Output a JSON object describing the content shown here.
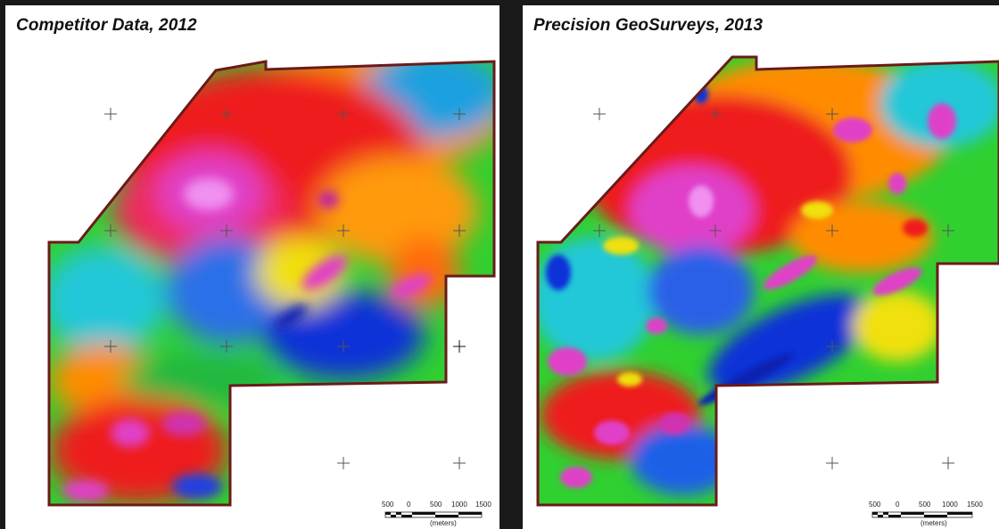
{
  "panels": [
    {
      "title": "Competitor Data, 2012",
      "scale_labels": [
        "500",
        "0",
        "500",
        "1000",
        "1500"
      ],
      "scale_unit": "(meters)"
    },
    {
      "title": "Precision GeoSurveys, 2013",
      "scale_labels": [
        "500",
        "0",
        "500",
        "1000",
        "1500"
      ],
      "scale_unit": "(meters)"
    }
  ],
  "colors": {
    "frame": "#1a1a1a",
    "survey_outline": "#6b1a1a",
    "magnetic_high": "#e040c8",
    "red": "#ee1c1c",
    "orange": "#ff8c00",
    "yellow": "#f0e010",
    "green": "#30d030",
    "cyan": "#20c8d8",
    "blue": "#1030d8",
    "grid_cross": "#555555"
  }
}
